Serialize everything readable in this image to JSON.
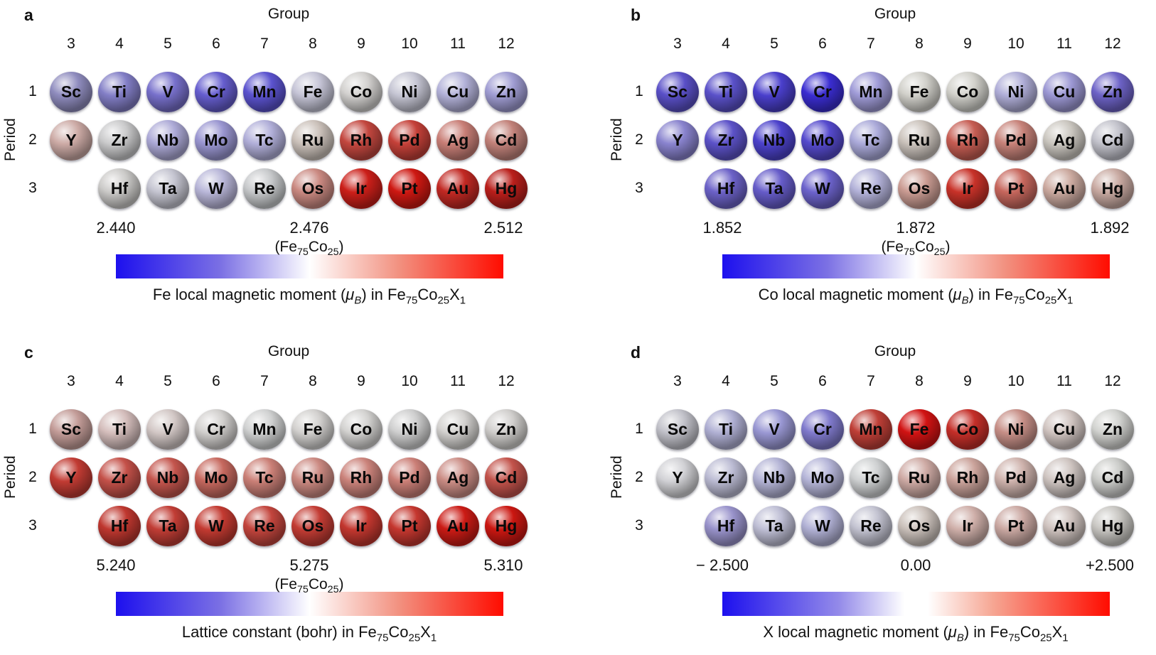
{
  "figure": {
    "element_rows": [
      [
        "Sc",
        "Ti",
        "V",
        "Cr",
        "Mn",
        "Fe",
        "Co",
        "Ni",
        "Cu",
        "Zn"
      ],
      [
        "Y",
        "Zr",
        "Nb",
        "Mo",
        "Tc",
        "Ru",
        "Rh",
        "Pd",
        "Ag",
        "Cd"
      ],
      [
        null,
        "Hf",
        "Ta",
        "W",
        "Re",
        "Os",
        "Ir",
        "Pt",
        "Au",
        "Hg"
      ]
    ],
    "panels": [
      {
        "id": "a",
        "panel_label": "a",
        "group_axis_label": "Group",
        "period_axis_label": "Period",
        "group_numbers": [
          "3",
          "4",
          "5",
          "6",
          "7",
          "8",
          "9",
          "10",
          "11",
          "12"
        ],
        "period_numbers": [
          "1",
          "2",
          "3"
        ],
        "colorbar": {
          "min_label": "2.440",
          "mid_label": "2.476",
          "max_label": "2.512",
          "reference_label_html": "(Fe<sub>75</sub>Co<sub>25</sub>)",
          "gradient_stops": [
            [
              "#1d10ee",
              0
            ],
            [
              "#7b70e4",
              27
            ],
            [
              "#ffffff",
              50
            ],
            [
              "#f29180",
              73
            ],
            [
              "#ff0c00",
              100
            ]
          ]
        },
        "caption_html": "Fe local magnetic moment (<i>μ<sub>B</sub></i>) in Fe<sub>75</sub>Co<sub>25</sub>X<sub>1</sub>"
      },
      {
        "id": "b",
        "panel_label": "b",
        "group_axis_label": "Group",
        "period_axis_label": "Period",
        "group_numbers": [
          "3",
          "4",
          "5",
          "6",
          "7",
          "8",
          "9",
          "10",
          "11",
          "12"
        ],
        "period_numbers": [
          "1",
          "2",
          "3"
        ],
        "colorbar": {
          "min_label": "1.852",
          "mid_label": "1.872",
          "max_label": "1.892",
          "reference_label_html": "(Fe<sub>75</sub>Co<sub>25</sub>)",
          "gradient_stops": [
            [
              "#1d10ee",
              0
            ],
            [
              "#7b70e4",
              27
            ],
            [
              "#ffffff",
              50
            ],
            [
              "#f29180",
              73
            ],
            [
              "#ff0c00",
              100
            ]
          ]
        },
        "caption_html": "Co local magnetic moment (<i>μ<sub>B</sub></i>) in Fe<sub>75</sub>Co<sub>25</sub>X<sub>1</sub>"
      },
      {
        "id": "c",
        "panel_label": "c",
        "group_axis_label": "Group",
        "period_axis_label": "Period",
        "group_numbers": [
          "3",
          "4",
          "5",
          "6",
          "7",
          "8",
          "9",
          "10",
          "11",
          "12"
        ],
        "period_numbers": [
          "1",
          "2",
          "3"
        ],
        "colorbar": {
          "min_label": "5.240",
          "mid_label": "5.275",
          "max_label": "5.310",
          "reference_label_html": "(Fe<sub>75</sub>Co<sub>25</sub>)",
          "gradient_stops": [
            [
              "#1d10ee",
              0
            ],
            [
              "#7b70e4",
              27
            ],
            [
              "#ffffff",
              50
            ],
            [
              "#f29180",
              73
            ],
            [
              "#ff0c00",
              100
            ]
          ]
        },
        "caption_html": "Lattice constant (bohr) in Fe<sub>75</sub>Co<sub>25</sub>X<sub>1</sub>"
      },
      {
        "id": "d",
        "panel_label": "d",
        "group_axis_label": "Group",
        "period_axis_label": "Period",
        "group_numbers": [
          "3",
          "4",
          "5",
          "6",
          "7",
          "8",
          "9",
          "10",
          "11",
          "12"
        ],
        "period_numbers": [
          "1",
          "2",
          "3"
        ],
        "colorbar": {
          "min_label": "− 2.500",
          "mid_label": "0.00",
          "max_label": "+2.500",
          "reference_label_html": null,
          "gradient_stops": [
            [
              "#1d10ee",
              0
            ],
            [
              "#938ae9",
              30
            ],
            [
              "#ffffff",
              47
            ],
            [
              "#ffffff",
              53
            ],
            [
              "#f6a592",
              70
            ],
            [
              "#ff0c00",
              100
            ]
          ]
        },
        "caption_html": "X local magnetic moment (<i>μ<sub>B</sub></i>) in Fe<sub>75</sub>Co<sub>25</sub>X<sub>1</sub>"
      }
    ]
  },
  "chart_data": [
    {
      "type": "heatmap",
      "panel": "a",
      "title": "Fe local magnetic moment (μB) in Fe75Co25X1",
      "xlabel": "Group",
      "ylabel": "Period",
      "x_categories": [
        "3",
        "4",
        "5",
        "6",
        "7",
        "8",
        "9",
        "10",
        "11",
        "12"
      ],
      "y_categories": [
        "1",
        "2",
        "3"
      ],
      "scale": {
        "min": 2.44,
        "mid": 2.476,
        "max": 2.512,
        "reference_at_mid": "Fe75Co25",
        "colormap": "blue-white-red"
      },
      "colors": [
        [
          "#8f8cbe",
          "#827ec6",
          "#7770cb",
          "#665ecf",
          "#5b53cf",
          "#c5c4d6",
          "#d2d0ce",
          "#c5c5d3",
          "#b3b2d9",
          "#a09dd3"
        ],
        [
          "#ccaaa5",
          "#cacacb",
          "#adaad7",
          "#9a96d1",
          "#b1afd9",
          "#cbc1ba",
          "#c3473f",
          "#c54139",
          "#c97f77",
          "#c2827a"
        ],
        [
          null,
          "#cbcac8",
          "#c4c4d0",
          "#b9b7d9",
          "#c7c9cb",
          "#ca8981",
          "#cb1f19",
          "#ce1812",
          "#c22923",
          "#ba1f1b"
        ]
      ]
    },
    {
      "type": "heatmap",
      "panel": "b",
      "title": "Co local magnetic moment (μB) in Fe75Co25X1",
      "xlabel": "Group",
      "ylabel": "Period",
      "x_categories": [
        "3",
        "4",
        "5",
        "6",
        "7",
        "8",
        "9",
        "10",
        "11",
        "12"
      ],
      "y_categories": [
        "1",
        "2",
        "3"
      ],
      "scale": {
        "min": 1.852,
        "mid": 1.872,
        "max": 1.892,
        "reference_at_mid": "Fe75Co25",
        "colormap": "blue-white-red"
      },
      "colors": [
        [
          "#5a50c8",
          "#5a51c9",
          "#4a3fcc",
          "#3a2dd1",
          "#9f9bd7",
          "#d1d0ca",
          "#d2d1cb",
          "#b0aed8",
          "#9c98d4",
          "#6d63c7"
        ],
        [
          "#8983ce",
          "#5c52c8",
          "#4c42cb",
          "#554acd",
          "#aaa9d9",
          "#cbc3bc",
          "#c65d53",
          "#c78279",
          "#cbc7c0",
          "#c2c2cb"
        ],
        [
          null,
          "#6c62c8",
          "#665cc9",
          "#6c63cc",
          "#b3b2d9",
          "#cb9c93",
          "#c83229",
          "#c7675d",
          "#ccaaa0",
          "#c8a9a1"
        ]
      ]
    },
    {
      "type": "heatmap",
      "panel": "c",
      "title": "Lattice constant (bohr) in Fe75Co25X1",
      "xlabel": "Group",
      "ylabel": "Period",
      "x_categories": [
        "3",
        "4",
        "5",
        "6",
        "7",
        "8",
        "9",
        "10",
        "11",
        "12"
      ],
      "y_categories": [
        "1",
        "2",
        "3"
      ],
      "scale": {
        "min": 5.24,
        "mid": 5.275,
        "max": 5.31,
        "reference_at_mid": "Fe75Co25",
        "colormap": "blue-white-red"
      },
      "colors": [
        [
          "#c39c98",
          "#d4bdbb",
          "#d2c7c5",
          "#d1cfcd",
          "#d0d1d1",
          "#d2d0ce",
          "#d3d2d0",
          "#cecece",
          "#d3d1cf",
          "#d0cecc"
        ],
        [
          "#c13b33",
          "#c45149",
          "#c4554d",
          "#c7695f",
          "#cb8077",
          "#cb8981",
          "#cb837b",
          "#cb7f77",
          "#cb8d85",
          "#c3534b"
        ],
        [
          null,
          "#bf372f",
          "#c13d35",
          "#c33a31",
          "#c3453d",
          "#c33c34",
          "#c3372f",
          "#c5372f",
          "#cb1b15",
          "#cb1711"
        ]
      ]
    },
    {
      "type": "heatmap",
      "panel": "d",
      "title": "X local magnetic moment (μB) in Fe75Co25X1",
      "xlabel": "Group",
      "ylabel": "Period",
      "x_categories": [
        "3",
        "4",
        "5",
        "6",
        "7",
        "8",
        "9",
        "10",
        "11",
        "12"
      ],
      "y_categories": [
        "1",
        "2",
        "3"
      ],
      "scale": {
        "min": -2.5,
        "mid": 0.0,
        "max": 2.5,
        "colormap": "blue-white-red"
      },
      "colors": [
        [
          "#c1c1c9",
          "#afafd3",
          "#9997d3",
          "#807acd",
          "#bf3f37",
          "#d11313",
          "#c52f29",
          "#c78f87",
          "#d1c5c1",
          "#d1d2cf"
        ],
        [
          "#d1d1d5",
          "#bbbbd3",
          "#b3b3d5",
          "#b6b6d9",
          "#ced0d1",
          "#cfaba5",
          "#cba39b",
          "#cfb3ad",
          "#cfc5c1",
          "#cbccc9"
        ],
        [
          null,
          "#9993cb",
          "#bfbfd5",
          "#b1b1d5",
          "#c3c3d1",
          "#cbc1bb",
          "#cfafa9",
          "#cba9a3",
          "#cfc3bf",
          "#c8c6c2"
        ]
      ]
    }
  ]
}
